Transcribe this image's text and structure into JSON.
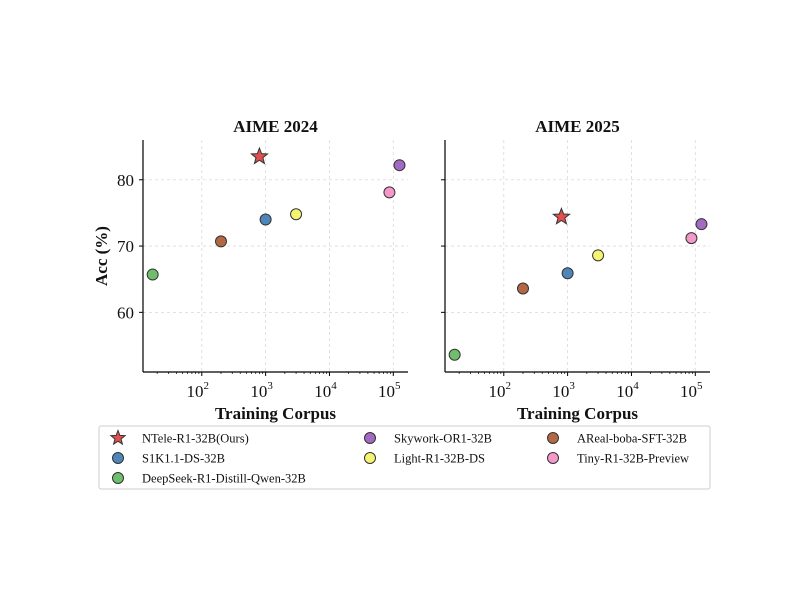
{
  "colors": {
    "NTele-R1-32B(Ours)": "#e0504f",
    "S1K1.1-DS-32B": "#4e86b9",
    "DeepSeek-R1-Distill-Qwen-32B": "#6ebe6b",
    "Skywork-OR1-32B": "#a26ac1",
    "Light-R1-32B-DS": "#f4f471",
    "AReal-boba-SFT-32B": "#b26845",
    "Tiny-R1-32B-Preview": "#f498c9"
  },
  "legend": {
    "placement": "bottom",
    "entries": [
      {
        "name": "NTele-R1-32B(Ours)",
        "marker": "star"
      },
      {
        "name": "S1K1.1-DS-32B",
        "marker": "circle"
      },
      {
        "name": "DeepSeek-R1-Distill-Qwen-32B",
        "marker": "circle"
      },
      {
        "name": "Skywork-OR1-32B",
        "marker": "circle"
      },
      {
        "name": "Light-R1-32B-DS",
        "marker": "circle"
      },
      {
        "name": "AReal-boba-SFT-32B",
        "marker": "circle"
      },
      {
        "name": "Tiny-R1-32B-Preview",
        "marker": "circle"
      }
    ]
  },
  "chart_data": [
    {
      "type": "scatter",
      "title": "AIME 2024",
      "xlabel": "Training Corpus",
      "ylabel": "Acc (%)",
      "xscale": "log",
      "xlim": [
        12,
        170000
      ],
      "ylim": [
        51,
        86
      ],
      "xticks": [
        100,
        1000,
        10000,
        100000
      ],
      "yticks": [
        60,
        70,
        80
      ],
      "grid": true,
      "points": [
        {
          "name": "NTele-R1-32B(Ours)",
          "x": 800,
          "y": 83.5
        },
        {
          "name": "S1K1.1-DS-32B",
          "x": 1000,
          "y": 74.0
        },
        {
          "name": "DeepSeek-R1-Distill-Qwen-32B",
          "x": 17,
          "y": 65.7
        },
        {
          "name": "Skywork-OR1-32B",
          "x": 125000,
          "y": 82.2
        },
        {
          "name": "Light-R1-32B-DS",
          "x": 3000,
          "y": 74.8
        },
        {
          "name": "AReal-boba-SFT-32B",
          "x": 200,
          "y": 70.7
        },
        {
          "name": "Tiny-R1-32B-Preview",
          "x": 87000,
          "y": 78.1
        }
      ]
    },
    {
      "type": "scatter",
      "title": "AIME 2025",
      "xlabel": "Training Corpus",
      "ylabel": "",
      "xscale": "log",
      "xlim": [
        12,
        170000
      ],
      "ylim": [
        51,
        86
      ],
      "xticks": [
        100,
        1000,
        10000,
        100000
      ],
      "yticks": [
        60,
        70,
        80
      ],
      "grid": true,
      "points": [
        {
          "name": "NTele-R1-32B(Ours)",
          "x": 800,
          "y": 74.4
        },
        {
          "name": "S1K1.1-DS-32B",
          "x": 1000,
          "y": 65.9
        },
        {
          "name": "DeepSeek-R1-Distill-Qwen-32B",
          "x": 17,
          "y": 53.6
        },
        {
          "name": "Skywork-OR1-32B",
          "x": 125000,
          "y": 73.3
        },
        {
          "name": "Light-R1-32B-DS",
          "x": 3000,
          "y": 68.6
        },
        {
          "name": "AReal-boba-SFT-32B",
          "x": 200,
          "y": 63.6
        },
        {
          "name": "Tiny-R1-32B-Preview",
          "x": 87000,
          "y": 71.2
        }
      ]
    }
  ]
}
